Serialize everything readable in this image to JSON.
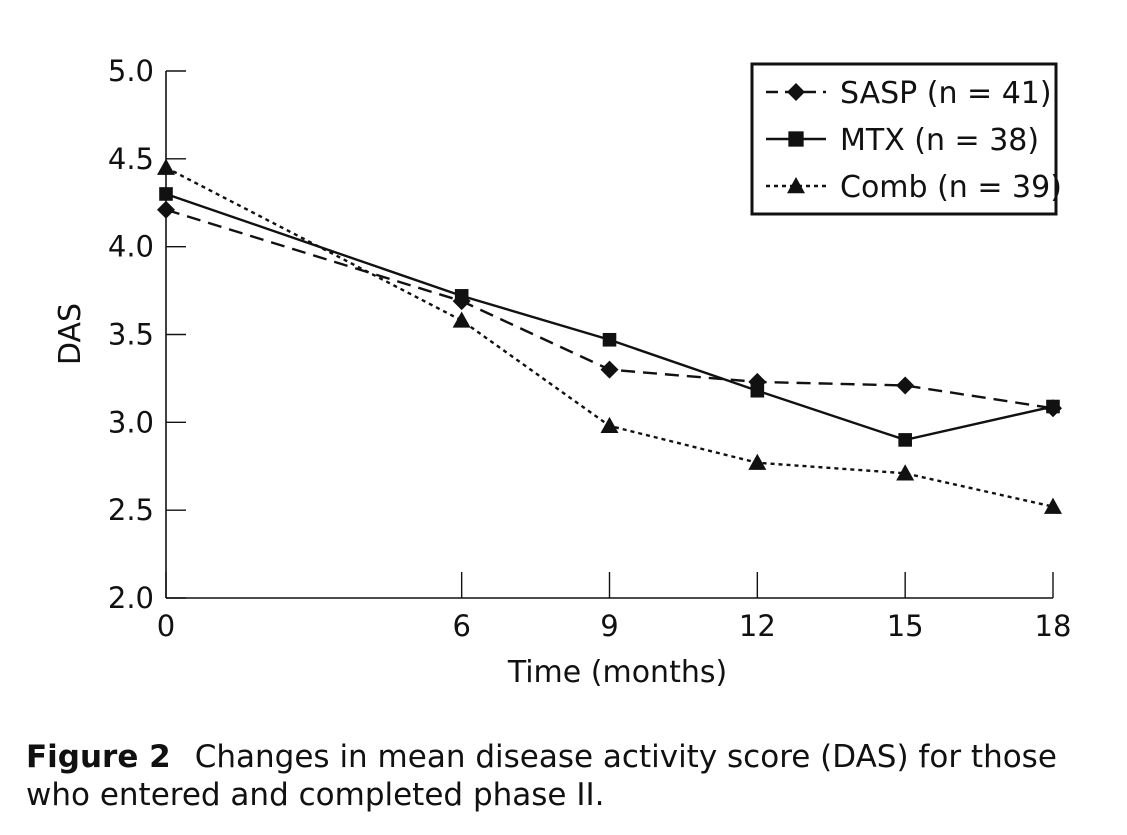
{
  "chart_data": {
    "type": "line",
    "xlabel": "Time (months)",
    "ylabel": "DAS",
    "x": [
      0,
      6,
      9,
      12,
      15,
      18
    ],
    "x_ticks": [
      "0",
      "6",
      "9",
      "12",
      "15",
      "18"
    ],
    "y_ticks": [
      "2.0",
      "2.5",
      "3.0",
      "3.5",
      "4.0",
      "4.5",
      "5.0"
    ],
    "xlim": [
      0,
      18
    ],
    "ylim": [
      2.0,
      5.0
    ],
    "grid": false,
    "legend_position": "top-right",
    "series": [
      {
        "name": "SASP (n = 41)",
        "marker": "diamond",
        "line_style": "dashed",
        "values": [
          4.21,
          3.69,
          3.3,
          3.23,
          3.21,
          3.08
        ]
      },
      {
        "name": "MTX (n = 38)",
        "marker": "square",
        "line_style": "solid",
        "values": [
          4.3,
          3.72,
          3.47,
          3.18,
          2.9,
          3.09
        ]
      },
      {
        "name": "Comb (n = 39)",
        "marker": "triangle",
        "line_style": "dotted",
        "values": [
          4.45,
          3.58,
          2.98,
          2.77,
          2.71,
          2.52
        ]
      }
    ]
  },
  "caption": {
    "label": "Figure 2",
    "text": "Changes in mean disease activity score (DAS) for those who entered and completed phase II."
  }
}
